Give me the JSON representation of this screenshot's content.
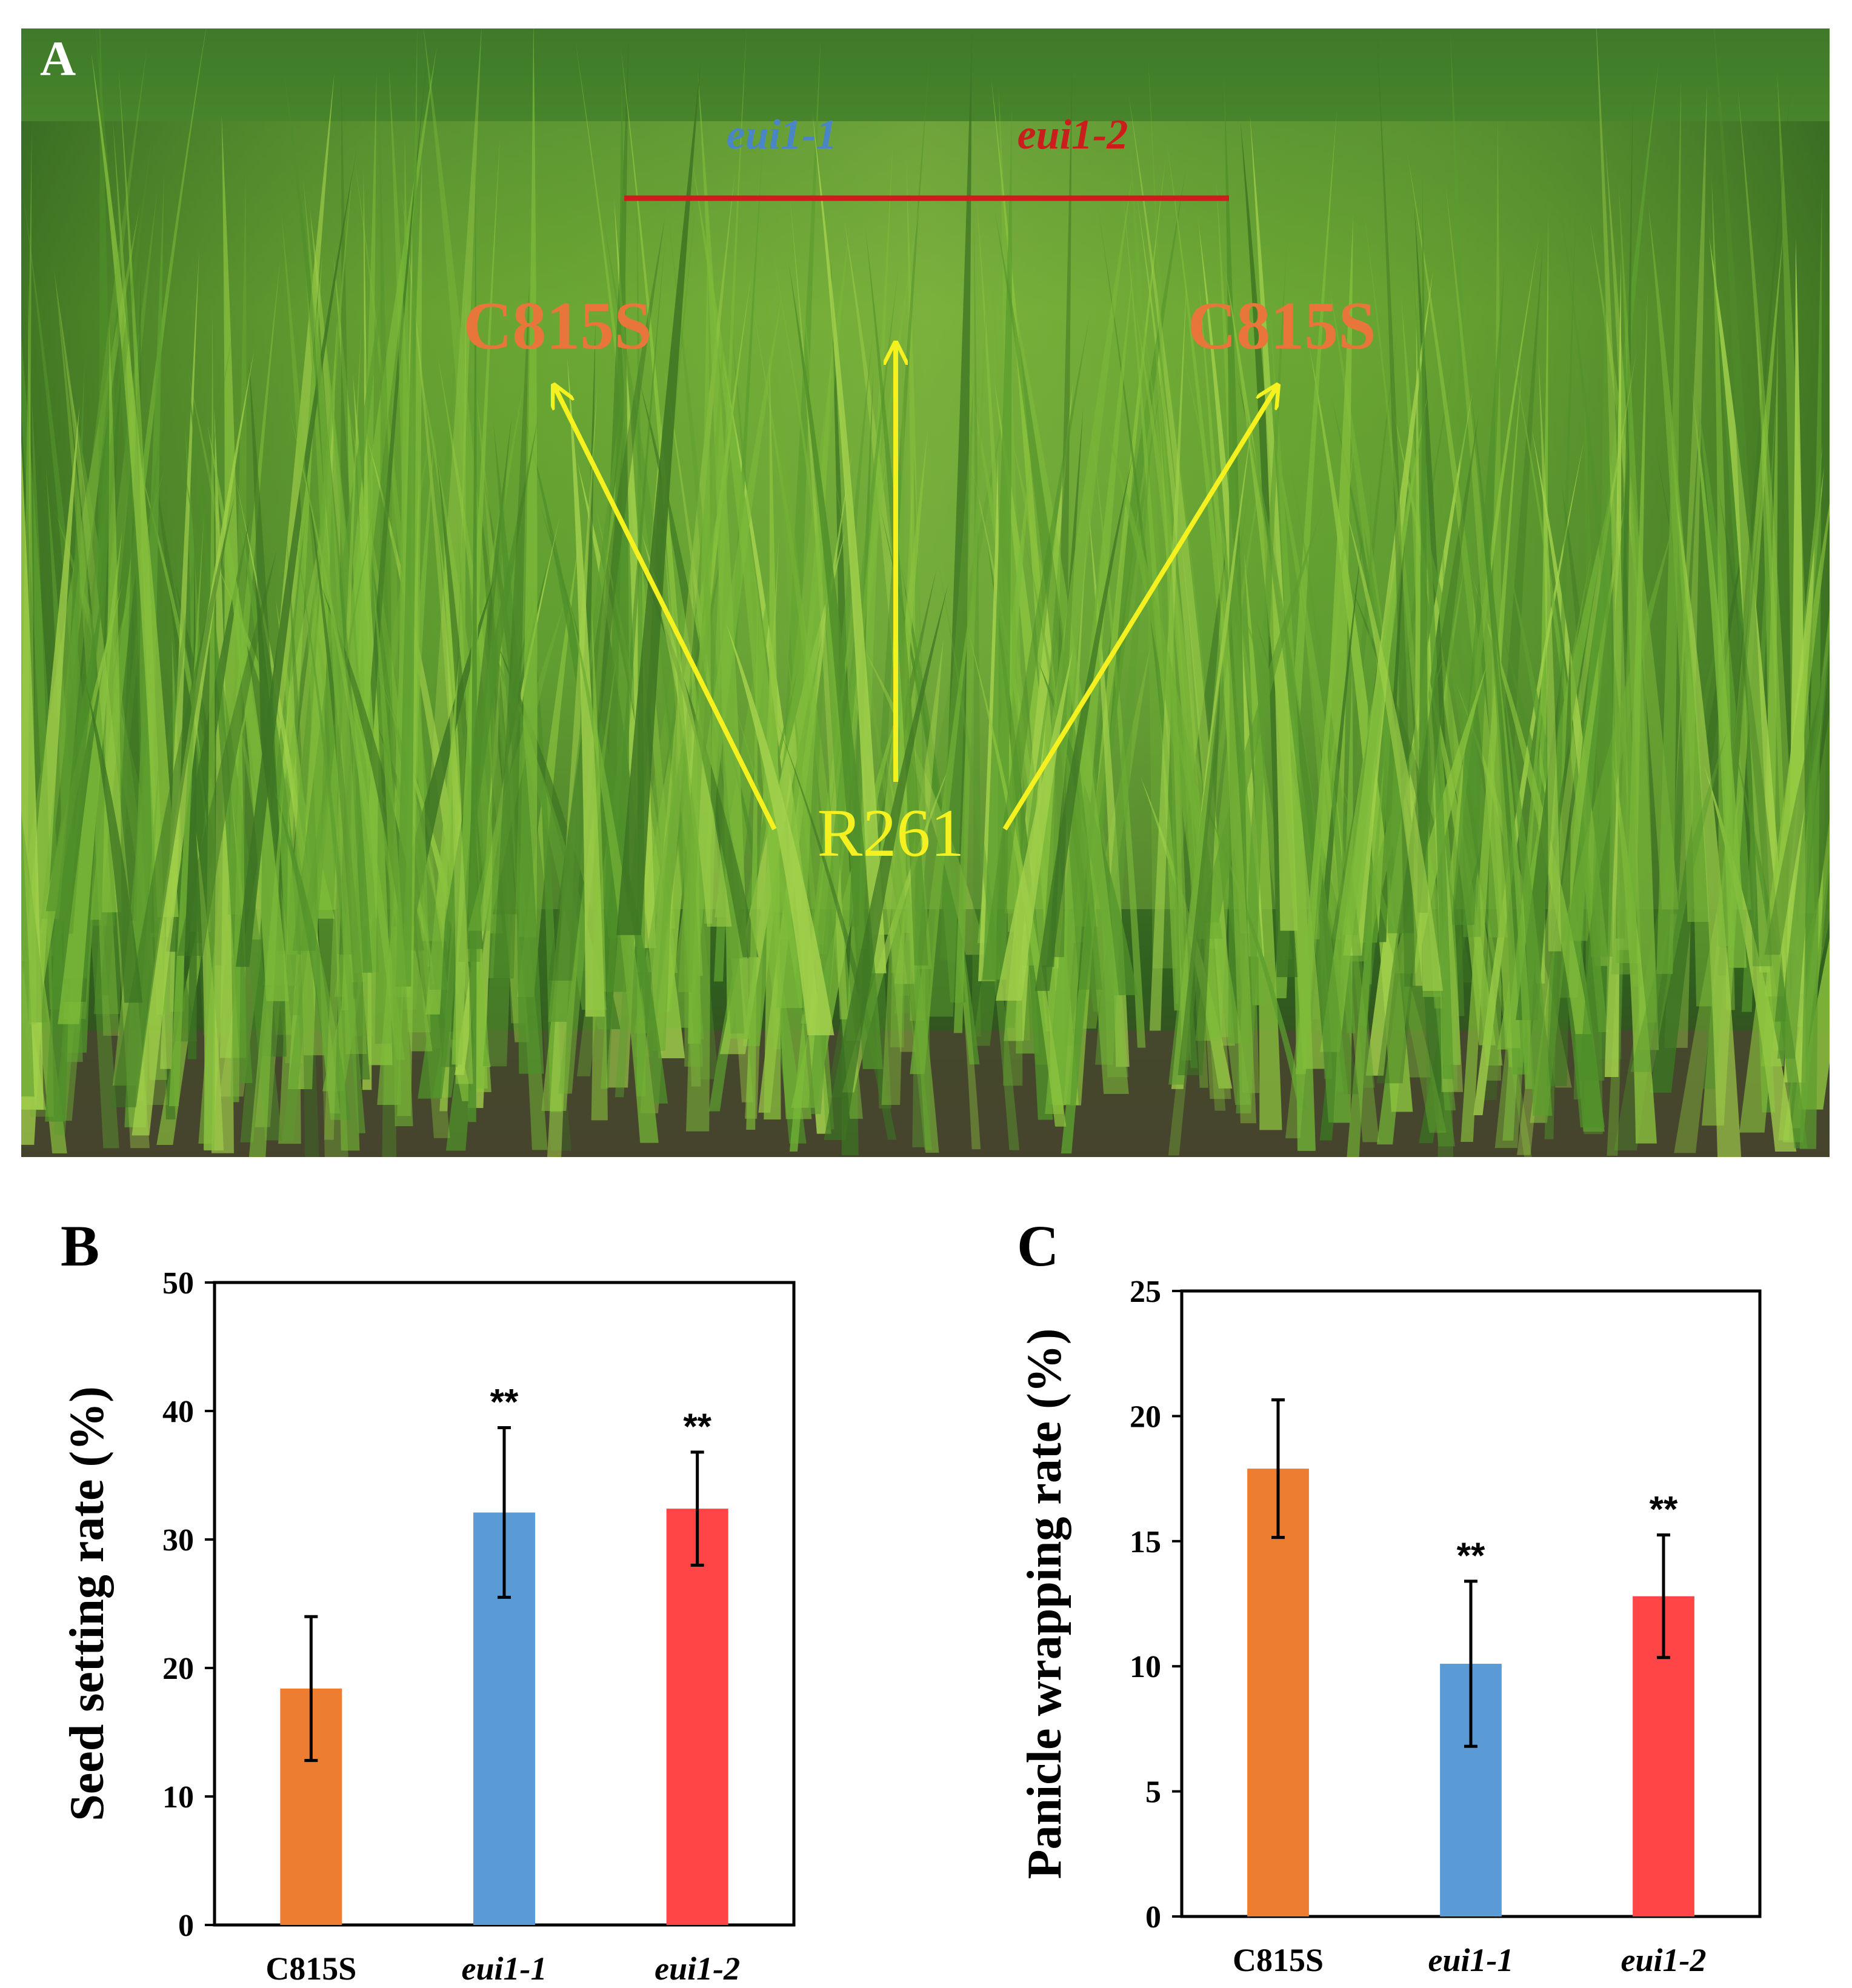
{
  "panels": {
    "A": "A",
    "B": "B",
    "C": "C"
  },
  "photo": {
    "labels": {
      "mutant1": "eui1-1",
      "mutant2": "eui1-2",
      "left_parent": "C815S",
      "right_parent": "C815S",
      "restorer": "R261"
    },
    "colors": {
      "mutant1_text": "#4a86c5",
      "mutant2_text": "#cc1d1d",
      "parent_text": "#e8763a",
      "restorer_text": "#f5f020",
      "arrow": "#f5f020",
      "divider": "#cc1d1d"
    }
  },
  "chart_data": [
    {
      "type": "bar",
      "panel": "B",
      "categories": [
        "C815S",
        "eui1-1",
        "eui1-2"
      ],
      "values": [
        18.4,
        32.1,
        32.4
      ],
      "errors": [
        5.6,
        6.6,
        4.4
      ],
      "significance": [
        "",
        "**",
        "**"
      ],
      "colors": [
        "#ed7d31",
        "#5b9bd5",
        "#ff4545"
      ],
      "title": "",
      "xlabel": "",
      "ylabel": "Seed setting rate (%)",
      "ylim": [
        0,
        50
      ],
      "yticks": [
        "0",
        "10",
        "20",
        "30",
        "40",
        "50"
      ],
      "grid": false
    },
    {
      "type": "bar",
      "panel": "C",
      "categories": [
        "C815S",
        "eui1-1",
        "eui1-2"
      ],
      "values": [
        17.9,
        10.1,
        12.8
      ],
      "errors": [
        2.75,
        3.3,
        2.45
      ],
      "significance": [
        "",
        "**",
        "**"
      ],
      "colors": [
        "#ed7d31",
        "#5b9bd5",
        "#ff4545"
      ],
      "title": "",
      "xlabel": "",
      "ylabel": "Panicle wrapping rate (%)",
      "ylim": [
        0,
        25
      ],
      "yticks": [
        "0",
        "5",
        "10",
        "15",
        "20",
        "25"
      ],
      "grid": false
    }
  ]
}
